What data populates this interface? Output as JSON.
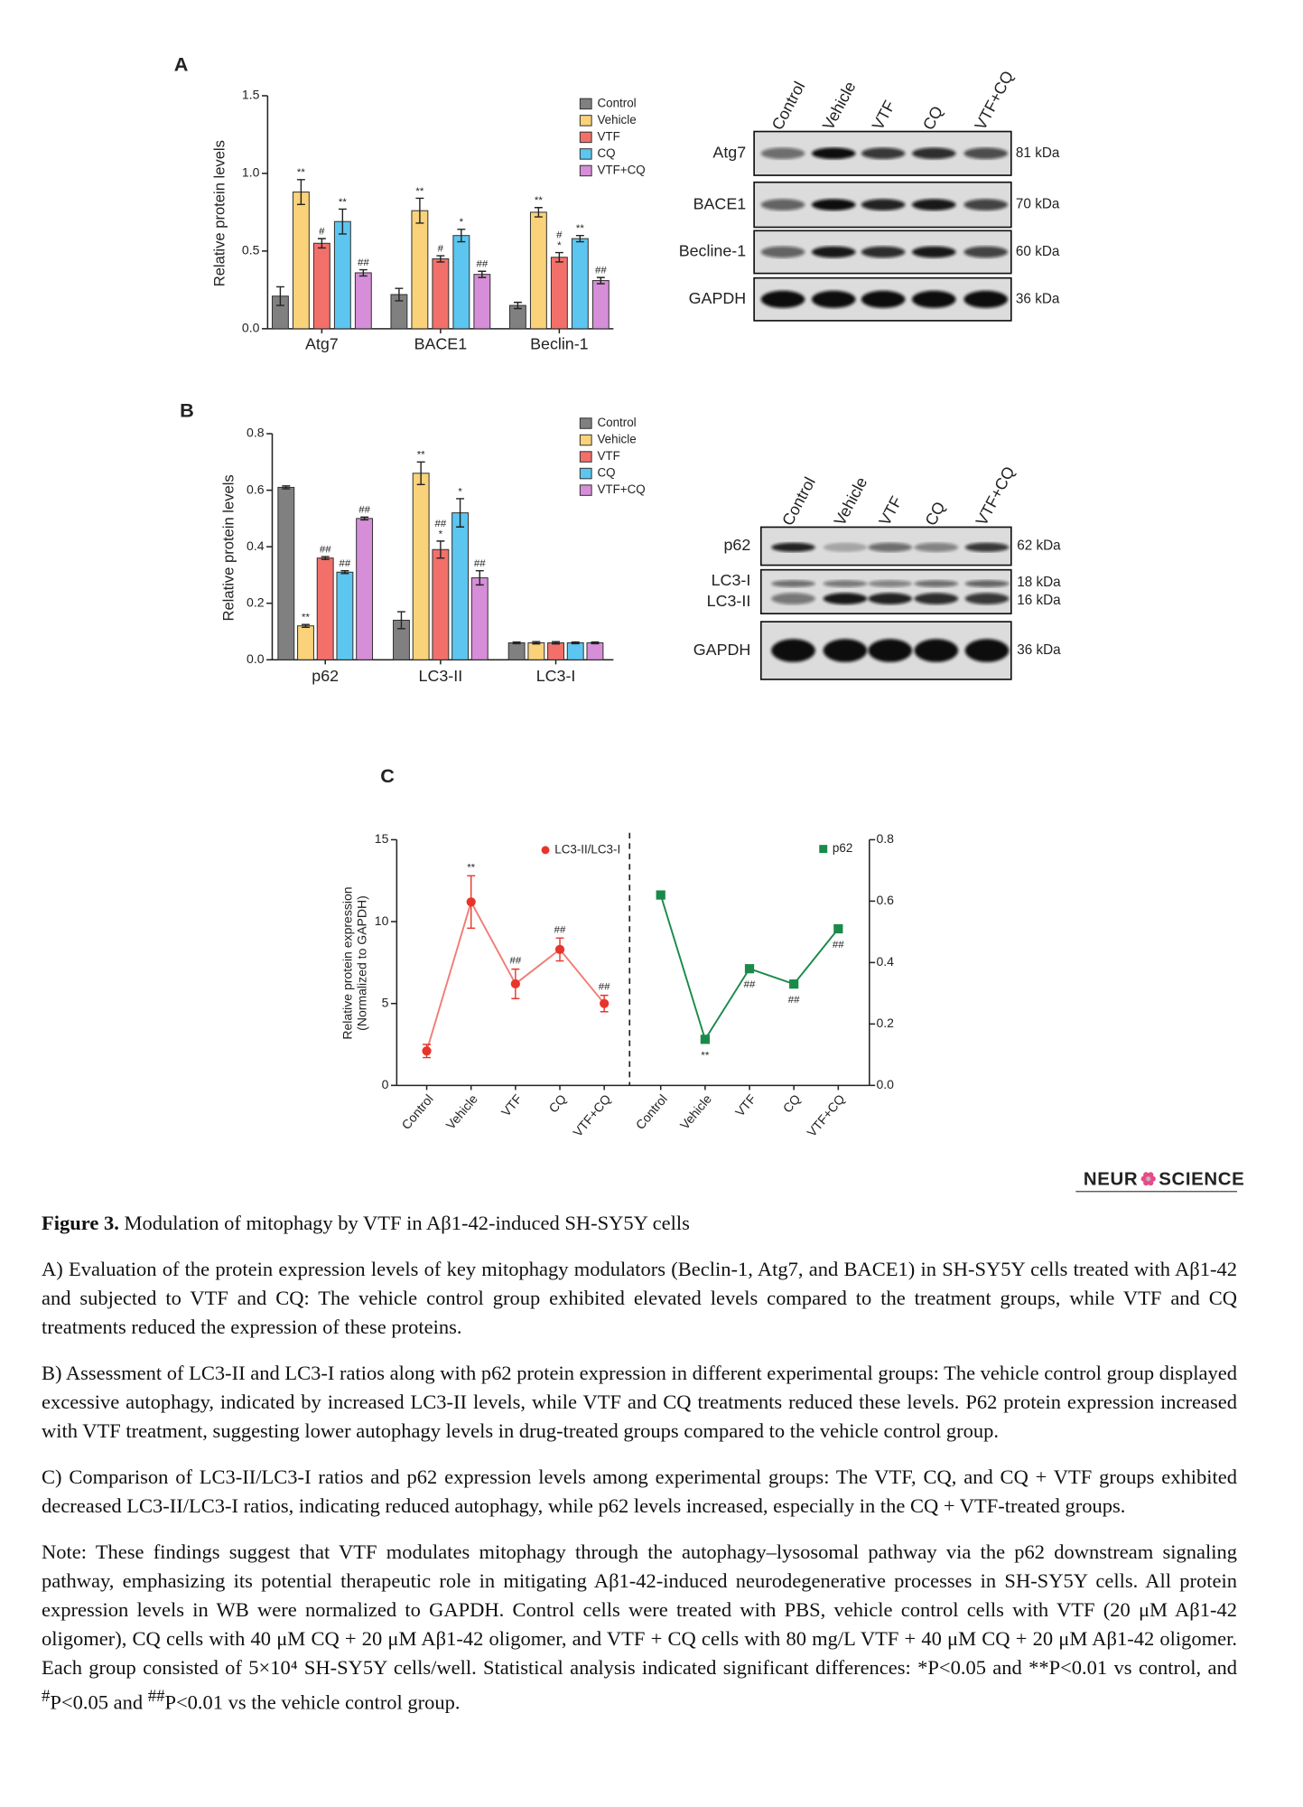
{
  "panels": [
    "A",
    "B",
    "C"
  ],
  "chart_data": [
    {
      "type": "bar",
      "ylabel": "Relative protein levels",
      "categories": [
        "Atg7",
        "BACE1",
        "Beclin-1"
      ],
      "ylim": [
        0,
        1.5
      ],
      "yticks": [
        {
          "value": 0,
          "label": "0.0"
        },
        {
          "value": 0.5,
          "label": "0.5"
        },
        {
          "value": 1,
          "label": "1.0"
        },
        {
          "value": 1.5,
          "label": "1.5"
        }
      ],
      "series": [
        {
          "name": "Control",
          "color": "#808080",
          "values": [
            0.21,
            0.22,
            0.15
          ],
          "errors": [
            0.06,
            0.04,
            0.02
          ],
          "labels": [
            null,
            null,
            null
          ]
        },
        {
          "name": "Vehicle",
          "color": "#f9d27a",
          "values": [
            0.88,
            0.76,
            0.75
          ],
          "errors": [
            0.08,
            0.08,
            0.03
          ],
          "labels": [
            [
              "**"
            ],
            [
              "**"
            ],
            [
              "**"
            ]
          ]
        },
        {
          "name": "VTF",
          "color": "#f3706a",
          "values": [
            0.55,
            0.45,
            0.46
          ],
          "errors": [
            0.03,
            0.02,
            0.03
          ],
          "labels": [
            [
              "#"
            ],
            [
              "#"
            ],
            [
              "#",
              "*"
            ]
          ]
        },
        {
          "name": "CQ",
          "color": "#5cc6f0",
          "values": [
            0.69,
            0.6,
            0.58
          ],
          "errors": [
            0.08,
            0.04,
            0.02
          ],
          "labels": [
            [
              "**"
            ],
            [
              "*"
            ],
            [
              "**"
            ]
          ]
        },
        {
          "name": "VTF+CQ",
          "color": "#d68ed8",
          "values": [
            0.36,
            0.35,
            0.31
          ],
          "errors": [
            0.02,
            0.02,
            0.02
          ],
          "labels": [
            [
              "##"
            ],
            [
              "##"
            ],
            [
              "##"
            ]
          ]
        }
      ]
    },
    {
      "type": "bar",
      "ylabel": "Relative protein levels",
      "categories": [
        "p62",
        "LC3-II",
        "LC3-I"
      ],
      "ylim": [
        0,
        0.8
      ],
      "yticks": [
        {
          "value": 0,
          "label": "0.0"
        },
        {
          "value": 0.2,
          "label": "0.2"
        },
        {
          "value": 0.4,
          "label": "0.4"
        },
        {
          "value": 0.6,
          "label": "0.6"
        },
        {
          "value": 0.8,
          "label": "0.8"
        }
      ],
      "series": [
        {
          "name": "Control",
          "color": "#808080",
          "values": [
            0.61,
            0.14,
            0.06
          ],
          "errors": [
            0.005,
            0.03,
            0.003
          ],
          "labels": [
            null,
            null,
            null
          ]
        },
        {
          "name": "Vehicle",
          "color": "#f9d27a",
          "values": [
            0.12,
            0.66,
            0.06
          ],
          "errors": [
            0.005,
            0.04,
            0.004
          ],
          "labels": [
            [
              "**"
            ],
            [
              "**"
            ],
            null
          ]
        },
        {
          "name": "VTF",
          "color": "#f3706a",
          "values": [
            0.36,
            0.39,
            0.06
          ],
          "errors": [
            0.005,
            0.03,
            0.004
          ],
          "labels": [
            [
              "##"
            ],
            [
              "##",
              "*"
            ],
            null
          ]
        },
        {
          "name": "CQ",
          "color": "#5cc6f0",
          "values": [
            0.31,
            0.52,
            0.06
          ],
          "errors": [
            0.005,
            0.05,
            0.003
          ],
          "labels": [
            [
              "##"
            ],
            [
              "*"
            ],
            null
          ]
        },
        {
          "name": "VTF+CQ",
          "color": "#d68ed8",
          "values": [
            0.5,
            0.29,
            0.06
          ],
          "errors": [
            0.005,
            0.025,
            0.003
          ],
          "labels": [
            [
              "##"
            ],
            [
              "##"
            ],
            null
          ]
        }
      ]
    },
    {
      "type": "line",
      "ylabel": [
        "Relative protein expression",
        "(Normalized to GAPDH)"
      ],
      "categories": [
        "Control",
        "Vehicle",
        "VTF",
        "CQ",
        "VTF+CQ"
      ],
      "ylim": [
        0,
        15
      ],
      "yticks": [
        0,
        5,
        10,
        15
      ],
      "y2lim": [
        0,
        0.8
      ],
      "y2ticks": [
        {
          "value": 0,
          "label": "0.0"
        },
        {
          "value": 0.2,
          "label": "0.2"
        },
        {
          "value": 0.4,
          "label": "0.4"
        },
        {
          "value": 0.6,
          "label": "0.6"
        },
        {
          "value": 0.8,
          "label": "0.8"
        }
      ],
      "series": [
        {
          "name": "LC3-II/LC3-I",
          "color": "#e8352b",
          "values": [
            2.1,
            11.2,
            6.2,
            8.3,
            5
          ],
          "errors": [
            0.4,
            1.6,
            0.9,
            0.7,
            0.5
          ],
          "labels": [
            null,
            [
              "**"
            ],
            [
              "##"
            ],
            [
              "##"
            ],
            [
              "##"
            ]
          ]
        },
        {
          "name": "p62",
          "color": "#1a8a4a",
          "axis": "y2",
          "values": [
            0.62,
            0.15,
            0.38,
            0.33,
            0.51
          ],
          "labels": [
            null,
            [
              "**"
            ],
            [
              "##"
            ],
            [
              "##"
            ],
            [
              "##"
            ]
          ]
        }
      ]
    }
  ],
  "blots": [
    {
      "lanes": [
        "Control",
        "Vehicle",
        "VTF",
        "CQ",
        "VTF+CQ"
      ],
      "rows": [
        {
          "labels": [
            "Atg7"
          ],
          "kda": [
            "81 kDa"
          ]
        },
        {
          "labels": [
            "BACE1"
          ],
          "kda": [
            "70 kDa"
          ]
        },
        {
          "labels": [
            "Becline-1"
          ],
          "kda": [
            "60 kDa"
          ]
        },
        {
          "labels": [
            "GAPDH"
          ],
          "kda": [
            "36 kDa"
          ]
        }
      ]
    },
    {
      "lanes": [
        "Control",
        "Vehicle",
        "VTF",
        "CQ",
        "VTF+CQ"
      ],
      "rows": [
        {
          "labels": [
            "p62"
          ],
          "kda": [
            "62 kDa"
          ]
        },
        {
          "labels": [
            "LC3-I",
            "LC3-II"
          ],
          "kda": [
            "18 kDa",
            "16 kDa"
          ]
        },
        {
          "labels": [
            "GAPDH"
          ],
          "kda": [
            "36 kDa"
          ]
        }
      ]
    }
  ],
  "logo": [
    "NEUR",
    "SCIENCE"
  ],
  "caption": {
    "label": "Figure 3.",
    "title": "Modulation of mitophagy by VTF in Aβ1-42-induced SH-SY5Y cells",
    "paragraphs": [
      "A) Evaluation of the protein expression levels of key mitophagy modulators (Beclin-1, Atg7, and BACE1) in SH-SY5Y cells treated with Aβ1-42 and subjected to VTF and CQ: The vehicle control group exhibited elevated levels compared to the treatment groups, while VTF and CQ treatments reduced the expression of these proteins.",
      "B) Assessment of LC3-II and LC3-I ratios along with p62 protein expression in different experimental groups: The vehicle control group displayed excessive autophagy, indicated by increased LC3-II levels, while VTF and CQ treatments reduced these levels. P62 protein expression increased with VTF treatment, suggesting lower autophagy levels in drug-treated groups compared to the vehicle control group.",
      "C) Comparison of LC3-II/LC3-I ratios and p62 expression levels among experimental groups: The VTF, CQ, and CQ + VTF groups exhibited decreased LC3-II/LC3-I ratios, indicating reduced autophagy, while p62 levels increased, especially in the CQ + VTF-treated groups."
    ],
    "note": [
      {
        "text": "Note: These findings suggest that VTF modulates mitophagy through the autophagy–lysosomal pathway via the p62 downstream signaling pathway, emphasizing its potential therapeutic role in mitigating Aβ1-42-induced neurodegenerative processes in SH-SY5Y cells. All protein expression levels in WB were normalized to GAPDH. Control cells were treated with PBS, vehicle control cells with VTF (20 μM Aβ1-42 oligomer), CQ cells with 40 μM CQ + 20 μM Aβ1-42 oligomer, and VTF + CQ cells with 80 mg/L VTF + 40 μM CQ + 20 μM Aβ1-42 oligomer. Each group consisted of 5×10⁴ SH-SY5Y cells/well. Statistical analysis indicated significant differences: *P<0.05 and **P<0.01 vs control, and "
      },
      {
        "sup": "#"
      },
      {
        "text": "P<0.05 and "
      },
      {
        "sup": "##"
      },
      {
        "text": "P<0.01 vs the vehicle control group."
      }
    ]
  }
}
